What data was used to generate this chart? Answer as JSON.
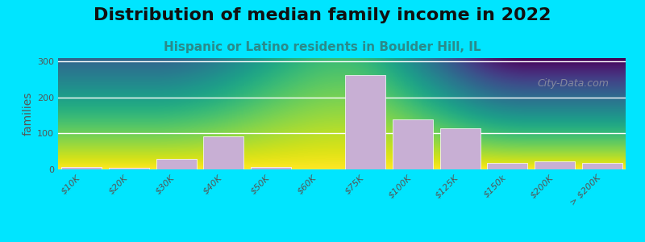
{
  "title": "Distribution of median family income in 2022",
  "subtitle": "Hispanic or Latino residents in Boulder Hill, IL",
  "ylabel": "families",
  "categories": [
    "$10K",
    "$20K",
    "$30K",
    "$40K",
    "$50K",
    "$60K",
    "$75K",
    "$100K",
    "$125K",
    "$150k",
    "$200K",
    "> $200K"
  ],
  "values": [
    7,
    5,
    30,
    92,
    7,
    0,
    263,
    140,
    115,
    18,
    23,
    18
  ],
  "bar_color": "#c8afd4",
  "background_top": "#dff0d0",
  "background_bottom": "#ffffff",
  "outer_bg": "#00e5ff",
  "ylim": [
    0,
    310
  ],
  "yticks": [
    0,
    100,
    200,
    300
  ],
  "title_fontsize": 16,
  "subtitle_fontsize": 11,
  "ylabel_fontsize": 10,
  "watermark": "City-Data.com"
}
